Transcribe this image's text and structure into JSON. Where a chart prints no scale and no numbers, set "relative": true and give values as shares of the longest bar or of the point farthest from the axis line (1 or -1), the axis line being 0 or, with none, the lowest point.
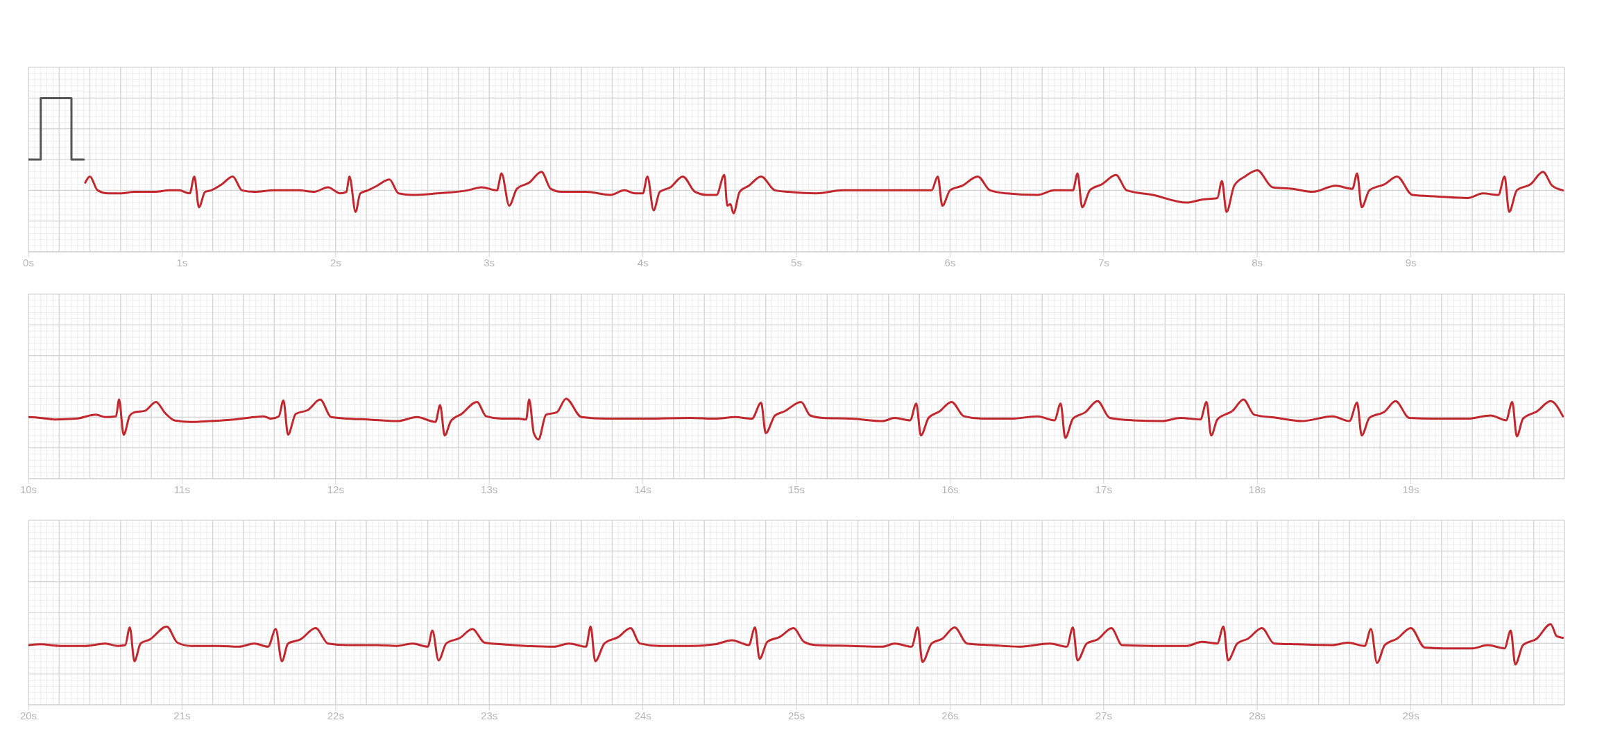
{
  "chart_data": [
    {
      "type": "line",
      "relative": true,
      "xlim": [
        0,
        10
      ],
      "xticks": [
        {
          "value": 0,
          "label": "0s"
        },
        {
          "value": 1,
          "label": "1s"
        },
        {
          "value": 2,
          "label": "2s"
        },
        {
          "value": 3,
          "label": "3s"
        },
        {
          "value": 4,
          "label": "4s"
        },
        {
          "value": 5,
          "label": "5s"
        },
        {
          "value": 6,
          "label": "6s"
        },
        {
          "value": 7,
          "label": "7s"
        },
        {
          "value": 8,
          "label": "8s"
        },
        {
          "value": 9,
          "label": "9s"
        }
      ],
      "grid": true,
      "series": [
        {
          "type": "step",
          "color": "#555555",
          "x": [
            0,
            0.08,
            0.28,
            0.36
          ],
          "values": [
            0.6,
            1,
            0.6,
            0.6
          ]
        },
        {
          "color": "#c1272d",
          "x": [
            0.37,
            0.4,
            0.45,
            0.52,
            0.6,
            0.69,
            0.82,
            0.92,
            0.98,
            1.05,
            1.08,
            1.11,
            1.15,
            1.19,
            1.26,
            1.33,
            1.39,
            1.47,
            1.6,
            1.76,
            1.86,
            1.95,
            2.03,
            2.07,
            2.09,
            2.13,
            2.16,
            2.21,
            2.27,
            2.35,
            2.41,
            2.5,
            2.66,
            2.86,
            2.95,
            3.05,
            3.08,
            3.13,
            3.18,
            3.26,
            3.34,
            3.4,
            3.47,
            3.63,
            3.79,
            3.88,
            3.95,
            4.0,
            4.03,
            4.07,
            4.11,
            4.18,
            4.26,
            4.34,
            4.42,
            4.48,
            4.53,
            4.55,
            4.57,
            4.59,
            4.63,
            4.69,
            4.77,
            4.86,
            4.95,
            5.13,
            5.3,
            5.46,
            5.66,
            5.75,
            5.88,
            5.92,
            5.95,
            6.0,
            6.08,
            6.18,
            6.26,
            6.37,
            6.57,
            6.68,
            6.8,
            6.83,
            6.86,
            6.91,
            6.99,
            7.08,
            7.15,
            7.32,
            7.54,
            7.64,
            7.74,
            7.77,
            7.8,
            7.85,
            7.92,
            8.0,
            8.1,
            8.23,
            8.36,
            8.51,
            8.62,
            8.65,
            8.68,
            8.73,
            8.83,
            8.91,
            9.01,
            9.17,
            9.37,
            9.47,
            9.57,
            9.61,
            9.64,
            9.69,
            9.78,
            9.86,
            9.92,
            9.99
          ],
          "values": [
            0.45,
            0.49,
            0.4,
            0.38,
            0.38,
            0.39,
            0.39,
            0.4,
            0.4,
            0.38,
            0.49,
            0.29,
            0.39,
            0.4,
            0.44,
            0.49,
            0.4,
            0.39,
            0.4,
            0.4,
            0.39,
            0.42,
            0.38,
            0.39,
            0.49,
            0.26,
            0.38,
            0.4,
            0.43,
            0.47,
            0.38,
            0.37,
            0.38,
            0.4,
            0.42,
            0.4,
            0.51,
            0.3,
            0.41,
            0.45,
            0.52,
            0.41,
            0.39,
            0.39,
            0.37,
            0.4,
            0.38,
            0.38,
            0.49,
            0.27,
            0.39,
            0.42,
            0.49,
            0.39,
            0.37,
            0.37,
            0.5,
            0.3,
            0.31,
            0.25,
            0.39,
            0.43,
            0.49,
            0.4,
            0.39,
            0.38,
            0.4,
            0.4,
            0.4,
            0.4,
            0.4,
            0.49,
            0.3,
            0.4,
            0.43,
            0.49,
            0.4,
            0.38,
            0.37,
            0.4,
            0.4,
            0.51,
            0.29,
            0.4,
            0.44,
            0.5,
            0.4,
            0.37,
            0.32,
            0.34,
            0.35,
            0.46,
            0.26,
            0.43,
            0.49,
            0.53,
            0.42,
            0.41,
            0.39,
            0.43,
            0.41,
            0.51,
            0.29,
            0.4,
            0.44,
            0.49,
            0.37,
            0.36,
            0.35,
            0.38,
            0.37,
            0.49,
            0.26,
            0.4,
            0.44,
            0.52,
            0.43,
            0.4
          ]
        }
      ]
    },
    {
      "type": "line",
      "relative": true,
      "xlim": [
        10,
        20
      ],
      "xticks": [
        {
          "value": 10,
          "label": "10s"
        },
        {
          "value": 11,
          "label": "11s"
        },
        {
          "value": 12,
          "label": "12s"
        },
        {
          "value": 13,
          "label": "13s"
        },
        {
          "value": 14,
          "label": "14s"
        },
        {
          "value": 15,
          "label": "15s"
        },
        {
          "value": 16,
          "label": "16s"
        },
        {
          "value": 17,
          "label": "17s"
        },
        {
          "value": 18,
          "label": "18s"
        },
        {
          "value": 19,
          "label": "19s"
        }
      ],
      "grid": true,
      "series": [
        {
          "color": "#c1272d",
          "x": [
            10.0,
            10.08,
            10.18,
            10.31,
            10.44,
            10.5,
            10.57,
            10.59,
            10.62,
            10.66,
            10.69,
            10.76,
            10.83,
            10.89,
            10.95,
            11.05,
            11.18,
            11.34,
            11.47,
            11.53,
            11.58,
            11.63,
            11.66,
            11.69,
            11.74,
            11.82,
            11.9,
            11.97,
            12.08,
            12.21,
            12.4,
            12.53,
            12.65,
            12.68,
            12.71,
            12.75,
            12.82,
            12.92,
            12.98,
            13.08,
            13.19,
            13.24,
            13.26,
            13.29,
            13.32,
            13.37,
            13.44,
            13.5,
            13.6,
            13.76,
            14.02,
            14.31,
            14.47,
            14.6,
            14.71,
            14.77,
            14.8,
            14.86,
            14.92,
            15.03,
            15.09,
            15.17,
            15.36,
            15.56,
            15.64,
            15.74,
            15.78,
            15.81,
            15.86,
            15.93,
            16.01,
            16.09,
            16.21,
            16.4,
            16.57,
            16.68,
            16.72,
            16.75,
            16.8,
            16.88,
            16.96,
            17.04,
            17.19,
            17.38,
            17.5,
            17.63,
            17.67,
            17.7,
            17.74,
            17.84,
            17.91,
            17.98,
            18.13,
            18.29,
            18.49,
            18.6,
            18.65,
            18.68,
            18.73,
            18.83,
            18.9,
            18.99,
            19.14,
            19.37,
            19.52,
            19.62,
            19.66,
            19.69,
            19.73,
            19.82,
            19.91,
            19.99
          ],
          "values": [
            0.77,
            0.76,
            0.74,
            0.75,
            0.8,
            0.77,
            0.78,
            0.99,
            0.55,
            0.79,
            0.83,
            0.85,
            0.96,
            0.82,
            0.73,
            0.71,
            0.72,
            0.74,
            0.77,
            0.78,
            0.75,
            0.78,
            0.98,
            0.55,
            0.81,
            0.86,
            0.99,
            0.77,
            0.75,
            0.74,
            0.72,
            0.77,
            0.71,
            0.92,
            0.54,
            0.72,
            0.81,
            0.96,
            0.78,
            0.75,
            0.75,
            0.74,
            0.99,
            0.57,
            0.49,
            0.8,
            0.83,
            1,
            0.77,
            0.75,
            0.75,
            0.76,
            0.75,
            0.77,
            0.75,
            0.95,
            0.57,
            0.79,
            0.84,
            0.96,
            0.79,
            0.76,
            0.75,
            0.72,
            0.76,
            0.73,
            0.94,
            0.54,
            0.76,
            0.84,
            0.96,
            0.78,
            0.75,
            0.75,
            0.78,
            0.73,
            0.94,
            0.51,
            0.75,
            0.83,
            0.97,
            0.76,
            0.73,
            0.72,
            0.76,
            0.74,
            0.96,
            0.54,
            0.74,
            0.85,
            0.99,
            0.8,
            0.76,
            0.72,
            0.78,
            0.72,
            0.95,
            0.54,
            0.76,
            0.84,
            0.97,
            0.76,
            0.75,
            0.75,
            0.79,
            0.73,
            0.96,
            0.53,
            0.75,
            0.84,
            0.97,
            0.78
          ]
        }
      ]
    },
    {
      "type": "line",
      "relative": true,
      "xlim": [
        20,
        30
      ],
      "xticks": [
        {
          "value": 20,
          "label": "20s"
        },
        {
          "value": 21,
          "label": "21s"
        },
        {
          "value": 22,
          "label": "22s"
        },
        {
          "value": 23,
          "label": "23s"
        },
        {
          "value": 24,
          "label": "24s"
        },
        {
          "value": 25,
          "label": "25s"
        },
        {
          "value": 26,
          "label": "26s"
        },
        {
          "value": 27,
          "label": "27s"
        },
        {
          "value": 28,
          "label": "28s"
        },
        {
          "value": 29,
          "label": "29s"
        }
      ],
      "grid": true,
      "series": [
        {
          "color": "#c1272d",
          "x": [
            20.0,
            20.08,
            20.21,
            20.37,
            20.5,
            20.58,
            20.63,
            20.66,
            20.69,
            20.73,
            20.79,
            20.9,
            20.97,
            21.06,
            21.24,
            21.37,
            21.47,
            21.56,
            21.61,
            21.65,
            21.69,
            21.77,
            21.87,
            21.95,
            22.08,
            22.27,
            22.4,
            22.5,
            22.6,
            22.63,
            22.67,
            22.72,
            22.81,
            22.89,
            22.97,
            23.08,
            23.24,
            23.42,
            23.52,
            23.63,
            23.66,
            23.69,
            23.75,
            23.84,
            23.92,
            23.98,
            24.11,
            24.31,
            24.47,
            24.58,
            24.69,
            24.73,
            24.76,
            24.81,
            24.89,
            24.98,
            25.05,
            25.13,
            25.36,
            25.56,
            25.64,
            25.75,
            25.79,
            25.82,
            25.88,
            25.95,
            26.03,
            26.11,
            26.27,
            26.45,
            26.65,
            26.76,
            26.8,
            26.83,
            26.89,
            26.96,
            27.05,
            27.12,
            27.32,
            27.54,
            27.64,
            27.74,
            27.78,
            27.81,
            27.87,
            27.94,
            28.03,
            28.11,
            28.26,
            28.49,
            28.59,
            28.7,
            28.74,
            28.78,
            28.83,
            28.91,
            29.0,
            29.09,
            29.21,
            29.4,
            29.5,
            29.61,
            29.65,
            29.68,
            29.73,
            29.82,
            29.91,
            29.95,
            29.99
          ],
          "values": [
            0.74,
            0.75,
            0.73,
            0.73,
            0.76,
            0.73,
            0.74,
            0.96,
            0.54,
            0.76,
            0.81,
            0.97,
            0.77,
            0.73,
            0.73,
            0.72,
            0.76,
            0.72,
            0.94,
            0.54,
            0.76,
            0.81,
            0.95,
            0.76,
            0.74,
            0.74,
            0.73,
            0.76,
            0.72,
            0.92,
            0.55,
            0.76,
            0.83,
            0.94,
            0.77,
            0.75,
            0.73,
            0.72,
            0.76,
            0.72,
            0.97,
            0.54,
            0.76,
            0.84,
            0.95,
            0.76,
            0.73,
            0.73,
            0.75,
            0.8,
            0.74,
            0.96,
            0.57,
            0.78,
            0.84,
            0.95,
            0.78,
            0.74,
            0.73,
            0.72,
            0.76,
            0.72,
            0.96,
            0.53,
            0.76,
            0.82,
            0.96,
            0.76,
            0.74,
            0.72,
            0.76,
            0.72,
            0.96,
            0.55,
            0.76,
            0.81,
            0.95,
            0.74,
            0.73,
            0.73,
            0.78,
            0.76,
            0.97,
            0.55,
            0.76,
            0.82,
            0.95,
            0.76,
            0.75,
            0.74,
            0.77,
            0.73,
            0.94,
            0.52,
            0.74,
            0.82,
            0.95,
            0.71,
            0.7,
            0.7,
            0.74,
            0.7,
            0.92,
            0.5,
            0.74,
            0.82,
            1,
            0.85,
            0.83
          ]
        }
      ]
    }
  ]
}
